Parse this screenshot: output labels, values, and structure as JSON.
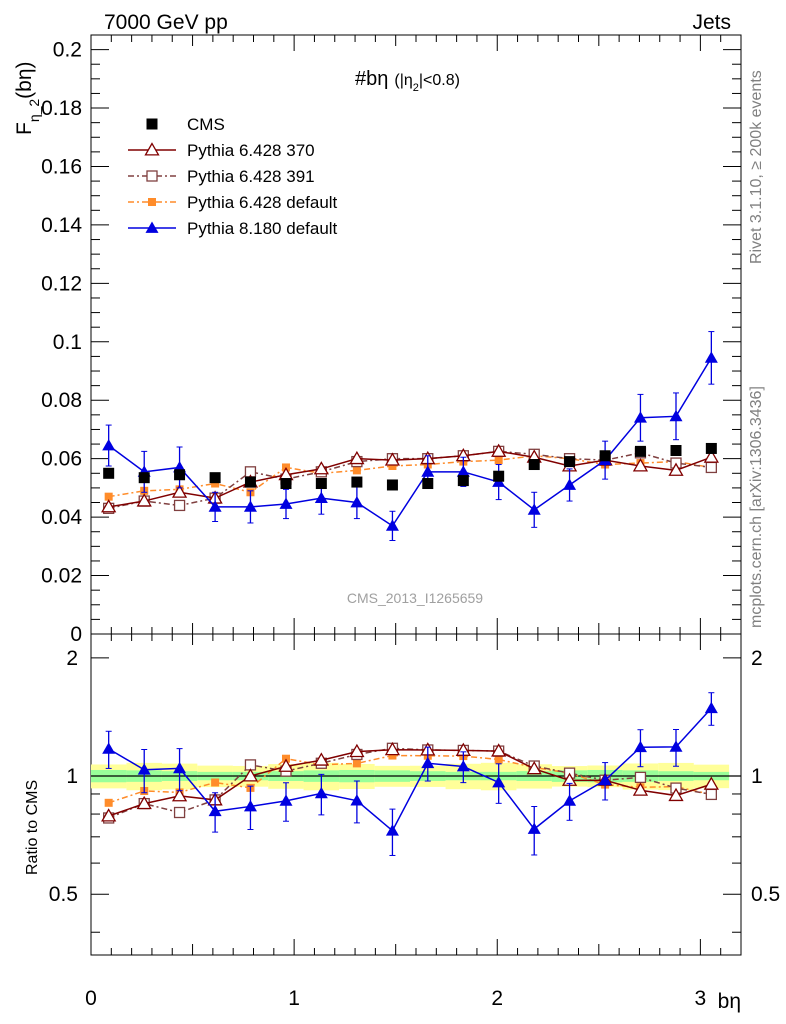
{
  "header": {
    "left": "7000 GeV pp",
    "right": "Jets"
  },
  "side_labels": {
    "top": "Rivet 3.1.10, ≥ 200k events",
    "bottom": "mcplots.cern.ch [arXiv:1306.3436]"
  },
  "chart_data": {
    "type": "scatter",
    "title": "#bη (|η₂|<0.8)",
    "title_parts": {
      "main": "#bη",
      "cond_a": "(|η",
      "cond_sub": "2",
      "cond_b": "|<0.8)"
    },
    "watermark": "CMS_2013_I1265659",
    "xlabel": "bη",
    "ylabel": "Fη_2(bη)",
    "ylabel_parts": {
      "main": "F",
      "sub": "η_2",
      "arg": "(bη)"
    },
    "ratio_ylabel": "Ratio to CMS",
    "xlim": [
      0,
      3.2
    ],
    "ylim": [
      0,
      0.205
    ],
    "ratio_ylim": [
      0.35,
      2.3
    ],
    "x_ticks": [
      "0",
      "1",
      "2",
      "3"
    ],
    "y_ticks": [
      "0",
      "0.02",
      "0.04",
      "0.06",
      "0.08",
      "0.1",
      "0.12",
      "0.14",
      "0.16",
      "0.18",
      "0.2"
    ],
    "ratio_ticks": [
      "0.5",
      "1",
      "2"
    ],
    "x": [
      0.087,
      0.262,
      0.436,
      0.611,
      0.785,
      0.96,
      1.134,
      1.309,
      1.484,
      1.658,
      1.833,
      2.007,
      2.182,
      2.356,
      2.531,
      2.705,
      2.88,
      3.054
    ],
    "series": [
      {
        "name": "CMS",
        "style": "data",
        "color": "#000000",
        "values": [
          0.055,
          0.0535,
          0.0545,
          0.0535,
          0.052,
          0.0515,
          0.0515,
          0.052,
          0.051,
          0.0515,
          0.0525,
          0.054,
          0.058,
          0.059,
          0.061,
          0.0625,
          0.0628,
          0.0635
        ],
        "ratio_band_inner": 0.03,
        "ratio_band_outer": 0.07
      },
      {
        "name": "Pythia 6.428 370",
        "style": "open-triangle",
        "color": "#800000",
        "values": [
          0.0435,
          0.0455,
          0.0485,
          0.0465,
          0.052,
          0.0545,
          0.0565,
          0.06,
          0.0595,
          0.06,
          0.061,
          0.0625,
          0.0605,
          0.0575,
          0.0595,
          0.0575,
          0.056,
          0.0605
        ]
      },
      {
        "name": "Pythia 6.428 391",
        "style": "open-square",
        "color": "#804040",
        "values": [
          0.043,
          0.0455,
          0.044,
          0.0465,
          0.0555,
          0.053,
          0.0555,
          0.059,
          0.06,
          0.06,
          0.061,
          0.0625,
          0.0615,
          0.06,
          0.0595,
          0.062,
          0.0585,
          0.057
        ]
      },
      {
        "name": "Pythia 6.428 default",
        "style": "filled-square-dashdot",
        "color": "#ff8c2a",
        "values": [
          0.047,
          0.049,
          0.0495,
          0.0515,
          0.0485,
          0.057,
          0.055,
          0.056,
          0.0575,
          0.058,
          0.059,
          0.0595,
          0.061,
          0.06,
          0.058,
          0.0585,
          0.059,
          0.057
        ]
      },
      {
        "name": "Pythia 8.180 default",
        "style": "filled-triangle",
        "color": "#0000e0",
        "values": [
          0.0645,
          0.0555,
          0.057,
          0.0435,
          0.0435,
          0.0445,
          0.0465,
          0.045,
          0.037,
          0.0555,
          0.0555,
          0.052,
          0.0425,
          0.051,
          0.0595,
          0.074,
          0.0745,
          0.0945
        ],
        "errors": [
          0.007,
          0.007,
          0.007,
          0.005,
          0.0055,
          0.005,
          0.0055,
          0.0055,
          0.005,
          0.0055,
          0.005,
          0.006,
          0.006,
          0.0055,
          0.0065,
          0.008,
          0.008,
          0.009
        ]
      }
    ]
  }
}
